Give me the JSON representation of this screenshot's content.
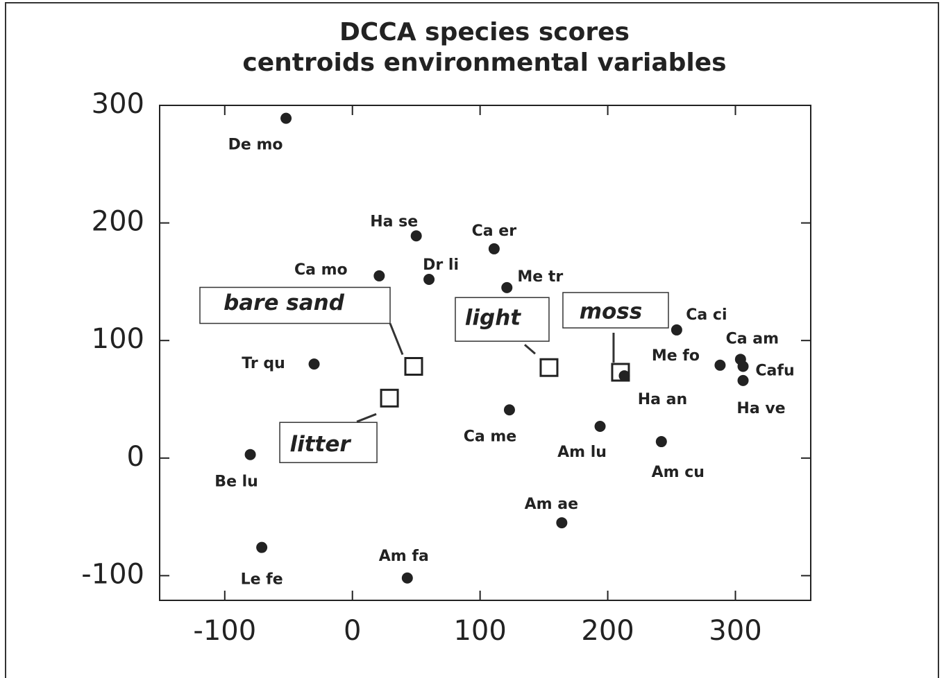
{
  "chart_data": {
    "type": "scatter",
    "title": [
      "DCCA species scores",
      "centroids environmental variables"
    ],
    "xlim": [
      -151,
      359
    ],
    "ylim": [
      -121,
      300
    ],
    "xticks": [
      -100,
      0,
      100,
      200,
      300
    ],
    "yticks": [
      -100,
      0,
      100,
      200,
      300
    ],
    "color": "#222222",
    "series": [
      {
        "name": "species",
        "labels": [
          "De mo",
          "Ha se",
          "Ca er",
          "Ca mo",
          "Dr li",
          "Me tr",
          "Ca ci",
          "Tr qu",
          "Me fo",
          "Ca am",
          "Cafu",
          "Ha ve",
          "Ha an",
          "Ca me",
          "Am lu",
          "Am cu",
          "Be lu",
          "Am ae",
          "Le fe",
          "Am fa"
        ],
        "x": [
          -52,
          50,
          111,
          21,
          60,
          121,
          254,
          -30,
          288,
          304,
          306,
          306,
          213,
          123,
          194,
          242,
          -80,
          164,
          -71,
          43
        ],
        "values": [
          289,
          189,
          178,
          155,
          152,
          145,
          109,
          80,
          79,
          84,
          78,
          66,
          70,
          41,
          27,
          14,
          3,
          -55,
          -76,
          -102
        ]
      },
      {
        "name": "environmental variables",
        "labels": [
          "bare sand",
          "light",
          "moss",
          "litter"
        ],
        "x": [
          48,
          154,
          210,
          29
        ],
        "values": [
          78,
          77,
          73,
          51
        ]
      }
    ]
  }
}
